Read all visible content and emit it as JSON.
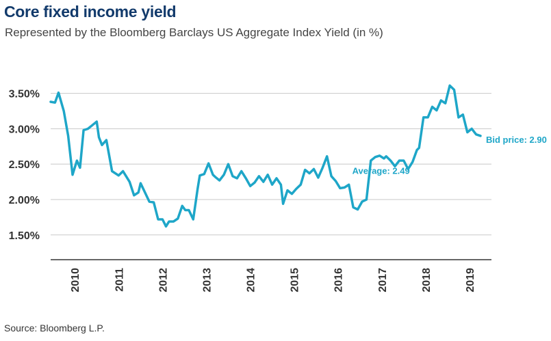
{
  "title": "Core fixed income yield",
  "subtitle": "Represented by the Bloomberg Barclays US Aggregate Index Yield (in %)",
  "source": "Source: Bloomberg L.P.",
  "colors": {
    "line": "#1ea6c8",
    "title": "#123a6b",
    "grid": "#c8c8c8",
    "axis": "#333333"
  },
  "chart_data": {
    "type": "line",
    "title": "Core fixed income yield",
    "subtitle": "Represented by the Bloomberg Barclays US Aggregate Index Yield (in %)",
    "xlabel": "",
    "ylabel": "",
    "xlim": [
      2009.45,
      2019.5
    ],
    "ylim": [
      1.15,
      3.95
    ],
    "y_ticks": [
      1.5,
      2.0,
      2.5,
      3.0,
      3.5
    ],
    "y_tick_labels": [
      "1.50%",
      "2.00%",
      "2.50%",
      "3.00%",
      "3.50%"
    ],
    "x_ticks": [
      2010,
      2011,
      2012,
      2013,
      2014,
      2015,
      2016,
      2017,
      2018,
      2019
    ],
    "x_tick_labels": [
      "2010",
      "2011",
      "2012",
      "2013",
      "2014",
      "2015",
      "2016",
      "2017",
      "2018",
      "2019"
    ],
    "grid": "horizontal",
    "series": [
      {
        "x": [
          2009.45,
          2009.55,
          2009.63,
          2009.75,
          2009.85,
          2009.95,
          2010.05,
          2010.12,
          2010.2,
          2010.3,
          2010.4,
          2010.5,
          2010.55,
          2010.62,
          2010.72,
          2010.85,
          2011.0,
          2011.1,
          2011.25,
          2011.35,
          2011.45,
          2011.5,
          2011.6,
          2011.7,
          2011.8,
          2011.9,
          2012.0,
          2012.08,
          2012.15,
          2012.25,
          2012.35,
          2012.45,
          2012.52,
          2012.6,
          2012.7,
          2012.8,
          2012.85,
          2012.95,
          2013.05,
          2013.15,
          2013.2,
          2013.3,
          2013.4,
          2013.5,
          2013.6,
          2013.7,
          2013.8,
          2013.9,
          2014.0,
          2014.1,
          2014.2,
          2014.3,
          2014.4,
          2014.5,
          2014.6,
          2014.7,
          2014.75,
          2014.85,
          2014.95,
          2015.05,
          2015.15,
          2015.25,
          2015.35,
          2015.45,
          2015.55,
          2015.65,
          2015.75,
          2015.85,
          2015.95,
          2016.05,
          2016.15,
          2016.25,
          2016.35,
          2016.45,
          2016.55,
          2016.65,
          2016.75,
          2016.85,
          2016.95,
          2017.05,
          2017.1,
          2017.2,
          2017.3,
          2017.4,
          2017.5,
          2017.6,
          2017.7,
          2017.8,
          2017.85,
          2017.95,
          2018.05,
          2018.15,
          2018.25,
          2018.35,
          2018.45,
          2018.55,
          2018.65,
          2018.75,
          2018.85,
          2018.95,
          2019.05,
          2019.15,
          2019.25
        ],
        "values": [
          3.38,
          3.37,
          3.51,
          3.25,
          2.9,
          2.35,
          2.55,
          2.45,
          2.98,
          3.0,
          3.05,
          3.1,
          2.88,
          2.77,
          2.84,
          2.4,
          2.34,
          2.4,
          2.25,
          2.06,
          2.1,
          2.23,
          2.1,
          1.97,
          1.96,
          1.72,
          1.72,
          1.62,
          1.69,
          1.69,
          1.73,
          1.91,
          1.85,
          1.85,
          1.72,
          2.15,
          2.34,
          2.36,
          2.51,
          2.35,
          2.32,
          2.27,
          2.35,
          2.5,
          2.33,
          2.3,
          2.4,
          2.3,
          2.19,
          2.24,
          2.33,
          2.25,
          2.35,
          2.21,
          2.3,
          2.21,
          1.94,
          2.13,
          2.08,
          2.15,
          2.21,
          2.42,
          2.37,
          2.43,
          2.31,
          2.45,
          2.61,
          2.33,
          2.26,
          2.16,
          2.17,
          2.21,
          1.89,
          1.86,
          1.97,
          2.0,
          2.55,
          2.6,
          2.62,
          2.58,
          2.61,
          2.55,
          2.47,
          2.55,
          2.55,
          2.43,
          2.53,
          2.7,
          2.73,
          3.16,
          3.16,
          3.31,
          3.26,
          3.4,
          3.36,
          3.61,
          3.55,
          3.16,
          3.2,
          2.95,
          3.0,
          2.92,
          2.9
        ]
      }
    ],
    "annotations": [
      {
        "text": "Bid price: 2.90",
        "x": 2019.25,
        "y": 2.9
      },
      {
        "text": "Average: 2.49",
        "x": 2017.7,
        "y": 2.4
      }
    ]
  }
}
